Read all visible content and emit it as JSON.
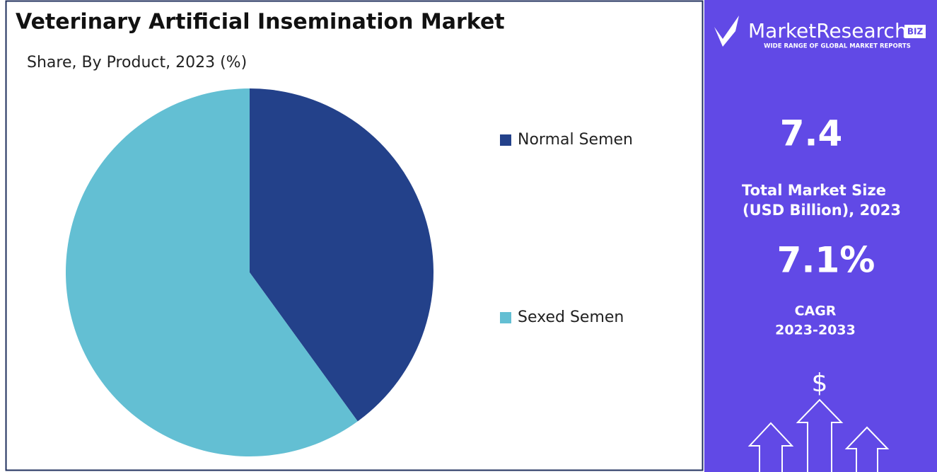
{
  "chart_data": {
    "type": "pie",
    "title": "Veterinary Artificial Insemination Market",
    "subtitle": "Share, By Product, 2023 (%)",
    "categories": [
      "Normal Semen",
      "Sexed Semen"
    ],
    "values": [
      40,
      60
    ],
    "colors": [
      "#23418a",
      "#63bfd3"
    ]
  },
  "sidebar": {
    "logo": "MarketResearch",
    "logo_badge": "BIZ",
    "tagline": "WIDE RANGE OF GLOBAL MARKET REPORTS",
    "market_size": "7.4",
    "market_size_label": [
      "Total Market Size",
      "(USD Billion), 2023"
    ],
    "cagr": "7.1%",
    "cagr_label": [
      "CAGR",
      "2023-2033"
    ],
    "icon": "$"
  }
}
